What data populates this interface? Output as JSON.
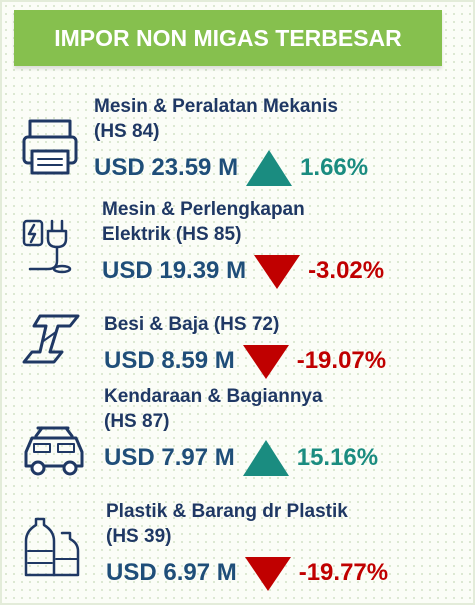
{
  "header": {
    "title": "IMPOR NON MIGAS TERBESAR"
  },
  "items": [
    {
      "name_lines": [
        "Mesin & Peralatan Mekanis",
        "(HS 84)"
      ],
      "value": "USD 23.59 M",
      "change": "1.66%"
    },
    {
      "name_lines": [
        "Mesin & Perlengkapan",
        "Elektrik (HS 85)"
      ],
      "value": "USD 19.39 M",
      "change": "-3.02%"
    },
    {
      "name_lines": [
        "Besi & Baja (HS 72)"
      ],
      "value": "USD 8.59 M",
      "change": "-19.07%"
    },
    {
      "name_lines": [
        "Kendaraan & Bagiannya",
        "(HS 87)"
      ],
      "value": "USD 7.97 M",
      "change": "15.16%"
    },
    {
      "name_lines": [
        "Plastik & Barang dr Plastik",
        "(HS 39)"
      ],
      "value": "USD 6.97 M",
      "change": "-19.77%"
    }
  ]
}
